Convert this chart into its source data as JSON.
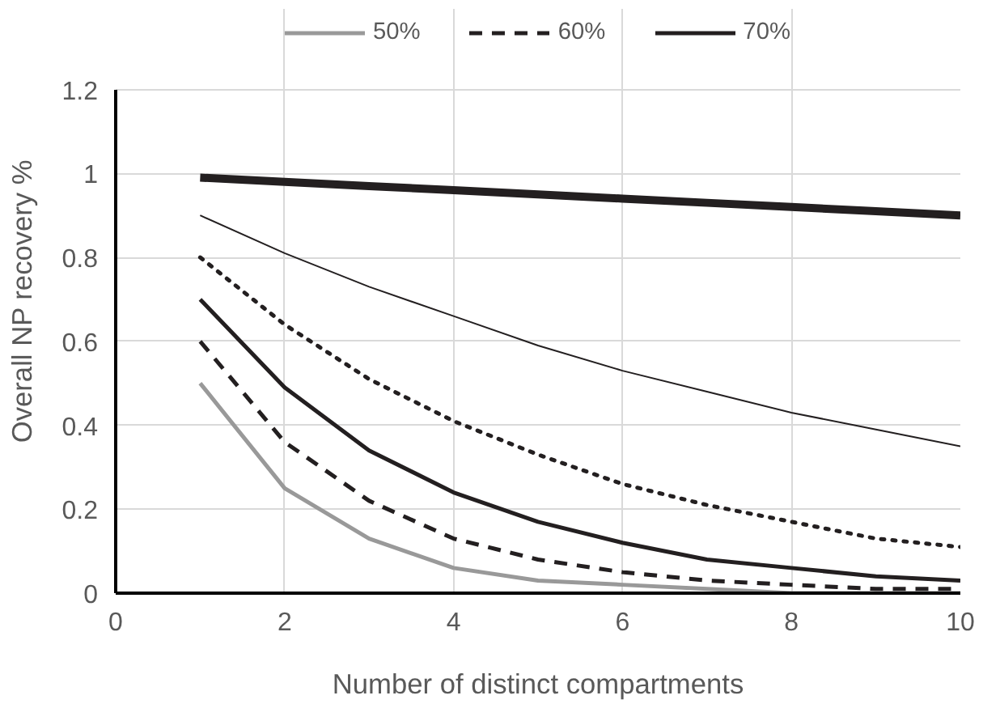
{
  "chart_data": {
    "type": "line",
    "xlabel": "Number of distinct compartments",
    "ylabel": "Overall NP recovery %",
    "x": [
      1,
      2,
      3,
      4,
      5,
      6,
      7,
      8,
      9,
      10
    ],
    "series": [
      {
        "name": "50%",
        "color": "#999999",
        "line_style": "solid",
        "values": [
          0.5,
          0.25,
          0.13,
          0.06,
          0.03,
          0.02,
          0.01,
          0,
          0,
          0
        ]
      },
      {
        "name": "60%",
        "color": "#231f20",
        "line_style": "dashed",
        "values": [
          0.6,
          0.36,
          0.22,
          0.13,
          0.08,
          0.05,
          0.03,
          0.02,
          0.01,
          0.01
        ]
      },
      {
        "name": "70%",
        "color": "#231f20",
        "line_style": "solid",
        "values": [
          0.7,
          0.49,
          0.34,
          0.24,
          0.17,
          0.12,
          0.08,
          0.06,
          0.04,
          0.03
        ]
      },
      {
        "color": "#231f20",
        "line_style": "dotted",
        "values": [
          0.8,
          0.64,
          0.51,
          0.41,
          0.33,
          0.26,
          0.21,
          0.17,
          0.13,
          0.11
        ]
      },
      {
        "color": "#231f20",
        "line_style": "solid",
        "values": [
          0.9,
          0.81,
          0.73,
          0.66,
          0.59,
          0.53,
          0.48,
          0.43,
          0.39,
          0.35
        ]
      },
      {
        "color": "#231f20",
        "line_style": "solid",
        "values": [
          0.99,
          0.98,
          0.97,
          0.96,
          0.95,
          0.94,
          0.93,
          0.92,
          0.91,
          0.9
        ]
      }
    ],
    "xlim": [
      0,
      10
    ],
    "xticks": [
      0,
      2,
      4,
      6,
      8,
      10
    ],
    "ylim": [
      0,
      1.2
    ],
    "yticks": [
      0,
      0.2,
      0.4,
      0.6,
      0.8,
      1,
      1.2
    ],
    "grid": true,
    "legend": "top",
    "marker": "none"
  }
}
